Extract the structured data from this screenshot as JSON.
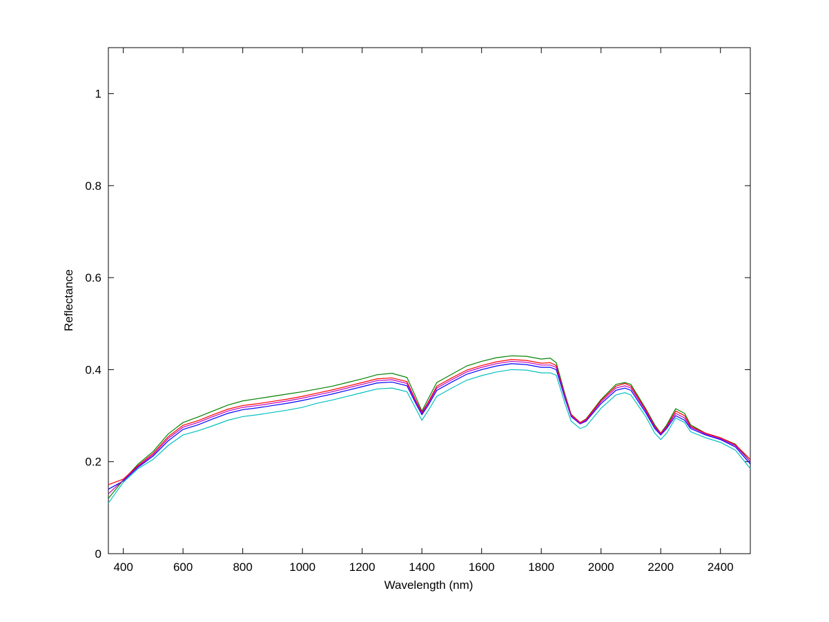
{
  "chart_data": {
    "type": "line",
    "xlabel": "Wavelength (nm)",
    "ylabel": "Reflectance",
    "xlim": [
      350,
      2500
    ],
    "ylim": [
      0,
      1.1
    ],
    "xticks": [
      400,
      600,
      800,
      1000,
      1200,
      1400,
      1600,
      1800,
      2000,
      2200,
      2400
    ],
    "yticks": [
      0,
      0.2,
      0.4,
      0.6,
      0.8,
      1
    ],
    "grid": false,
    "x": [
      350,
      400,
      450,
      500,
      550,
      600,
      650,
      700,
      750,
      800,
      850,
      900,
      950,
      1000,
      1050,
      1100,
      1150,
      1200,
      1250,
      1300,
      1350,
      1380,
      1400,
      1420,
      1450,
      1500,
      1550,
      1600,
      1650,
      1700,
      1750,
      1800,
      1830,
      1850,
      1880,
      1900,
      1930,
      1950,
      2000,
      2050,
      2080,
      2100,
      2150,
      2180,
      2200,
      2220,
      2250,
      2280,
      2300,
      2350,
      2400,
      2450,
      2500
    ],
    "series": [
      {
        "color": "#0000ff",
        "values": [
          0.14,
          0.158,
          0.188,
          0.212,
          0.245,
          0.27,
          0.28,
          0.293,
          0.305,
          0.313,
          0.317,
          0.322,
          0.327,
          0.333,
          0.34,
          0.347,
          0.355,
          0.363,
          0.371,
          0.373,
          0.365,
          0.326,
          0.302,
          0.321,
          0.355,
          0.373,
          0.39,
          0.4,
          0.408,
          0.413,
          0.411,
          0.405,
          0.405,
          0.4,
          0.336,
          0.298,
          0.282,
          0.288,
          0.326,
          0.355,
          0.36,
          0.355,
          0.306,
          0.272,
          0.258,
          0.272,
          0.3,
          0.29,
          0.272,
          0.258,
          0.248,
          0.232,
          0.195
        ]
      },
      {
        "color": "#008000",
        "values": [
          0.12,
          0.16,
          0.195,
          0.222,
          0.26,
          0.285,
          0.297,
          0.31,
          0.323,
          0.332,
          0.337,
          0.342,
          0.347,
          0.352,
          0.358,
          0.364,
          0.372,
          0.38,
          0.389,
          0.392,
          0.383,
          0.34,
          0.31,
          0.335,
          0.372,
          0.39,
          0.408,
          0.418,
          0.426,
          0.43,
          0.429,
          0.423,
          0.425,
          0.415,
          0.345,
          0.303,
          0.285,
          0.293,
          0.335,
          0.368,
          0.372,
          0.368,
          0.315,
          0.28,
          0.262,
          0.28,
          0.315,
          0.305,
          0.28,
          0.262,
          0.252,
          0.238,
          0.2
        ]
      },
      {
        "color": "#ff0000",
        "values": [
          0.15,
          0.162,
          0.192,
          0.218,
          0.254,
          0.279,
          0.289,
          0.302,
          0.314,
          0.322,
          0.326,
          0.331,
          0.336,
          0.342,
          0.349,
          0.356,
          0.364,
          0.372,
          0.38,
          0.382,
          0.374,
          0.333,
          0.307,
          0.328,
          0.364,
          0.382,
          0.399,
          0.409,
          0.417,
          0.422,
          0.42,
          0.414,
          0.415,
          0.409,
          0.342,
          0.302,
          0.285,
          0.292,
          0.333,
          0.364,
          0.37,
          0.364,
          0.313,
          0.277,
          0.262,
          0.277,
          0.31,
          0.3,
          0.277,
          0.262,
          0.252,
          0.237,
          0.205
        ]
      },
      {
        "color": "#00bfbf",
        "values": [
          0.11,
          0.155,
          0.185,
          0.205,
          0.235,
          0.258,
          0.267,
          0.278,
          0.29,
          0.298,
          0.302,
          0.307,
          0.312,
          0.318,
          0.327,
          0.334,
          0.342,
          0.35,
          0.358,
          0.36,
          0.352,
          0.315,
          0.29,
          0.31,
          0.342,
          0.36,
          0.377,
          0.387,
          0.395,
          0.4,
          0.399,
          0.393,
          0.393,
          0.388,
          0.325,
          0.288,
          0.272,
          0.277,
          0.316,
          0.345,
          0.35,
          0.345,
          0.298,
          0.262,
          0.248,
          0.262,
          0.295,
          0.285,
          0.265,
          0.252,
          0.242,
          0.225,
          0.185
        ]
      },
      {
        "color": "#bf00bf",
        "values": [
          0.13,
          0.16,
          0.19,
          0.215,
          0.25,
          0.275,
          0.285,
          0.298,
          0.31,
          0.318,
          0.322,
          0.327,
          0.332,
          0.338,
          0.345,
          0.352,
          0.36,
          0.368,
          0.376,
          0.378,
          0.37,
          0.33,
          0.305,
          0.325,
          0.36,
          0.378,
          0.395,
          0.405,
          0.413,
          0.418,
          0.416,
          0.41,
          0.41,
          0.405,
          0.34,
          0.3,
          0.283,
          0.29,
          0.33,
          0.36,
          0.365,
          0.36,
          0.31,
          0.275,
          0.26,
          0.275,
          0.305,
          0.295,
          0.275,
          0.26,
          0.25,
          0.235,
          0.2
        ]
      }
    ]
  }
}
